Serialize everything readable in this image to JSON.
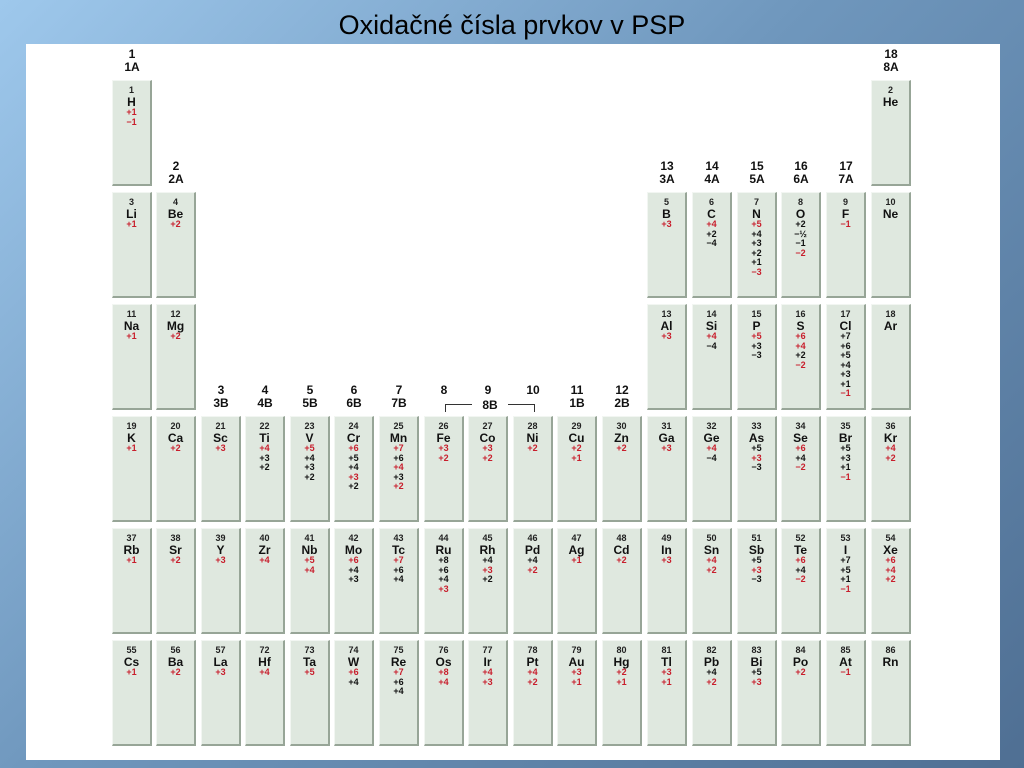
{
  "title": "Oxidačné čísla prvkov v PSP",
  "groups": {
    "g1": [
      "1",
      "1A"
    ],
    "g2": [
      "2",
      "2A"
    ],
    "g3": [
      "3",
      "3B"
    ],
    "g4": [
      "4",
      "4B"
    ],
    "g5": [
      "5",
      "5B"
    ],
    "g6": [
      "6",
      "6B"
    ],
    "g7": [
      "7",
      "7B"
    ],
    "g8": [
      "8",
      ""
    ],
    "g9": [
      "9",
      ""
    ],
    "g10": [
      "10",
      ""
    ],
    "g11": [
      "11",
      "1B"
    ],
    "g12": [
      "12",
      "2B"
    ],
    "g13": [
      "13",
      "3A"
    ],
    "g14": [
      "14",
      "4A"
    ],
    "g15": [
      "15",
      "5A"
    ],
    "g16": [
      "16",
      "6A"
    ],
    "g17": [
      "17",
      "7A"
    ],
    "g18": [
      "18",
      "8A"
    ],
    "g8b": "8B"
  },
  "elements": [
    {
      "n": "1",
      "s": "H",
      "ox": [
        [
          "+1",
          "red"
        ],
        [
          "−1",
          "red"
        ]
      ]
    },
    {
      "n": "2",
      "s": "He",
      "ox": []
    },
    {
      "n": "3",
      "s": "Li",
      "ox": [
        [
          "+1",
          "red"
        ]
      ]
    },
    {
      "n": "4",
      "s": "Be",
      "ox": [
        [
          "+2",
          "red"
        ]
      ]
    },
    {
      "n": "5",
      "s": "B",
      "ox": [
        [
          "+3",
          "red"
        ]
      ]
    },
    {
      "n": "6",
      "s": "C",
      "ox": [
        [
          "+4",
          "red"
        ],
        [
          "+2",
          "black"
        ],
        [
          "−4",
          "black"
        ]
      ]
    },
    {
      "n": "7",
      "s": "N",
      "ox": [
        [
          "+5",
          "red"
        ],
        [
          "+4",
          "black"
        ],
        [
          "+3",
          "black"
        ],
        [
          "+2",
          "black"
        ],
        [
          "+1",
          "black"
        ],
        [
          "−3",
          "red"
        ]
      ]
    },
    {
      "n": "8",
      "s": "O",
      "ox": [
        [
          "+2",
          "black"
        ],
        [
          "−½",
          "black"
        ],
        [
          "−1",
          "black"
        ],
        [
          "−2",
          "red"
        ]
      ]
    },
    {
      "n": "9",
      "s": "F",
      "ox": [
        [
          "−1",
          "red"
        ]
      ]
    },
    {
      "n": "10",
      "s": "Ne",
      "ox": []
    },
    {
      "n": "11",
      "s": "Na",
      "ox": [
        [
          "+1",
          "red"
        ]
      ]
    },
    {
      "n": "12",
      "s": "Mg",
      "ox": [
        [
          "+2",
          "red"
        ]
      ]
    },
    {
      "n": "13",
      "s": "Al",
      "ox": [
        [
          "+3",
          "red"
        ]
      ]
    },
    {
      "n": "14",
      "s": "Si",
      "ox": [
        [
          "+4",
          "red"
        ],
        [
          "−4",
          "black"
        ]
      ]
    },
    {
      "n": "15",
      "s": "P",
      "ox": [
        [
          "+5",
          "red"
        ],
        [
          "+3",
          "black"
        ],
        [
          "−3",
          "black"
        ]
      ]
    },
    {
      "n": "16",
      "s": "S",
      "ox": [
        [
          "+6",
          "red"
        ],
        [
          "+4",
          "red"
        ],
        [
          "+2",
          "black"
        ],
        [
          "−2",
          "red"
        ]
      ]
    },
    {
      "n": "17",
      "s": "Cl",
      "ox": [
        [
          "+7",
          "black"
        ],
        [
          "+6",
          "black"
        ],
        [
          "+5",
          "black"
        ],
        [
          "+4",
          "black"
        ],
        [
          "+3",
          "black"
        ],
        [
          "+1",
          "black"
        ],
        [
          "−1",
          "red"
        ]
      ]
    },
    {
      "n": "18",
      "s": "Ar",
      "ox": []
    },
    {
      "n": "19",
      "s": "K",
      "ox": [
        [
          "+1",
          "red"
        ]
      ]
    },
    {
      "n": "20",
      "s": "Ca",
      "ox": [
        [
          "+2",
          "red"
        ]
      ]
    },
    {
      "n": "21",
      "s": "Sc",
      "ox": [
        [
          "+3",
          "red"
        ]
      ]
    },
    {
      "n": "22",
      "s": "Ti",
      "ox": [
        [
          "+4",
          "red"
        ],
        [
          "+3",
          "black"
        ],
        [
          "+2",
          "black"
        ]
      ]
    },
    {
      "n": "23",
      "s": "V",
      "ox": [
        [
          "+5",
          "red"
        ],
        [
          "+4",
          "black"
        ],
        [
          "+3",
          "black"
        ],
        [
          "+2",
          "black"
        ]
      ]
    },
    {
      "n": "24",
      "s": "Cr",
      "ox": [
        [
          "+6",
          "red"
        ],
        [
          "+5",
          "black"
        ],
        [
          "+4",
          "black"
        ],
        [
          "+3",
          "red"
        ],
        [
          "+2",
          "black"
        ]
      ]
    },
    {
      "n": "25",
      "s": "Mn",
      "ox": [
        [
          "+7",
          "red"
        ],
        [
          "+6",
          "black"
        ],
        [
          "+4",
          "red"
        ],
        [
          "+3",
          "black"
        ],
        [
          "+2",
          "red"
        ]
      ]
    },
    {
      "n": "26",
      "s": "Fe",
      "ox": [
        [
          "+3",
          "red"
        ],
        [
          "+2",
          "red"
        ]
      ]
    },
    {
      "n": "27",
      "s": "Co",
      "ox": [
        [
          "+3",
          "red"
        ],
        [
          "+2",
          "red"
        ]
      ]
    },
    {
      "n": "28",
      "s": "Ni",
      "ox": [
        [
          "+2",
          "red"
        ]
      ]
    },
    {
      "n": "29",
      "s": "Cu",
      "ox": [
        [
          "+2",
          "red"
        ],
        [
          "+1",
          "red"
        ]
      ]
    },
    {
      "n": "30",
      "s": "Zn",
      "ox": [
        [
          "+2",
          "red"
        ]
      ]
    },
    {
      "n": "31",
      "s": "Ga",
      "ox": [
        [
          "+3",
          "red"
        ]
      ]
    },
    {
      "n": "32",
      "s": "Ge",
      "ox": [
        [
          "+4",
          "red"
        ],
        [
          "−4",
          "black"
        ]
      ]
    },
    {
      "n": "33",
      "s": "As",
      "ox": [
        [
          "+5",
          "black"
        ],
        [
          "+3",
          "red"
        ],
        [
          "−3",
          "black"
        ]
      ]
    },
    {
      "n": "34",
      "s": "Se",
      "ox": [
        [
          "+6",
          "red"
        ],
        [
          "+4",
          "black"
        ],
        [
          "−2",
          "red"
        ]
      ]
    },
    {
      "n": "35",
      "s": "Br",
      "ox": [
        [
          "+5",
          "black"
        ],
        [
          "+3",
          "black"
        ],
        [
          "+1",
          "black"
        ],
        [
          "−1",
          "red"
        ]
      ]
    },
    {
      "n": "36",
      "s": "Kr",
      "ox": [
        [
          "+4",
          "red"
        ],
        [
          "+2",
          "red"
        ]
      ]
    },
    {
      "n": "37",
      "s": "Rb",
      "ox": [
        [
          "+1",
          "red"
        ]
      ]
    },
    {
      "n": "38",
      "s": "Sr",
      "ox": [
        [
          "+2",
          "red"
        ]
      ]
    },
    {
      "n": "39",
      "s": "Y",
      "ox": [
        [
          "+3",
          "red"
        ]
      ]
    },
    {
      "n": "40",
      "s": "Zr",
      "ox": [
        [
          "+4",
          "red"
        ]
      ]
    },
    {
      "n": "41",
      "s": "Nb",
      "ox": [
        [
          "+5",
          "red"
        ],
        [
          "+4",
          "red"
        ]
      ]
    },
    {
      "n": "42",
      "s": "Mo",
      "ox": [
        [
          "+6",
          "red"
        ],
        [
          "+4",
          "black"
        ],
        [
          "+3",
          "black"
        ]
      ]
    },
    {
      "n": "43",
      "s": "Tc",
      "ox": [
        [
          "+7",
          "red"
        ],
        [
          "+6",
          "black"
        ],
        [
          "+4",
          "black"
        ]
      ]
    },
    {
      "n": "44",
      "s": "Ru",
      "ox": [
        [
          "+8",
          "black"
        ],
        [
          "+6",
          "black"
        ],
        [
          "+4",
          "black"
        ],
        [
          "+3",
          "red"
        ]
      ]
    },
    {
      "n": "45",
      "s": "Rh",
      "ox": [
        [
          "+4",
          "black"
        ],
        [
          "+3",
          "red"
        ],
        [
          "+2",
          "black"
        ]
      ]
    },
    {
      "n": "46",
      "s": "Pd",
      "ox": [
        [
          "+4",
          "black"
        ],
        [
          "+2",
          "red"
        ]
      ]
    },
    {
      "n": "47",
      "s": "Ag",
      "ox": [
        [
          "+1",
          "red"
        ]
      ]
    },
    {
      "n": "48",
      "s": "Cd",
      "ox": [
        [
          "+2",
          "red"
        ]
      ]
    },
    {
      "n": "49",
      "s": "In",
      "ox": [
        [
          "+3",
          "red"
        ]
      ]
    },
    {
      "n": "50",
      "s": "Sn",
      "ox": [
        [
          "+4",
          "red"
        ],
        [
          "+2",
          "red"
        ]
      ]
    },
    {
      "n": "51",
      "s": "Sb",
      "ox": [
        [
          "+5",
          "black"
        ],
        [
          "+3",
          "red"
        ],
        [
          "−3",
          "black"
        ]
      ]
    },
    {
      "n": "52",
      "s": "Te",
      "ox": [
        [
          "+6",
          "red"
        ],
        [
          "+4",
          "black"
        ],
        [
          "−2",
          "red"
        ]
      ]
    },
    {
      "n": "53",
      "s": "I",
      "ox": [
        [
          "+7",
          "black"
        ],
        [
          "+5",
          "black"
        ],
        [
          "+1",
          "black"
        ],
        [
          "−1",
          "red"
        ]
      ]
    },
    {
      "n": "54",
      "s": "Xe",
      "ox": [
        [
          "+6",
          "red"
        ],
        [
          "+4",
          "red"
        ],
        [
          "+2",
          "red"
        ]
      ]
    },
    {
      "n": "55",
      "s": "Cs",
      "ox": [
        [
          "+1",
          "red"
        ]
      ]
    },
    {
      "n": "56",
      "s": "Ba",
      "ox": [
        [
          "+2",
          "red"
        ]
      ]
    },
    {
      "n": "57",
      "s": "La",
      "ox": [
        [
          "+3",
          "red"
        ]
      ]
    },
    {
      "n": "72",
      "s": "Hf",
      "ox": [
        [
          "+4",
          "red"
        ]
      ]
    },
    {
      "n": "73",
      "s": "Ta",
      "ox": [
        [
          "+5",
          "red"
        ]
      ]
    },
    {
      "n": "74",
      "s": "W",
      "ox": [
        [
          "+6",
          "red"
        ],
        [
          "+4",
          "black"
        ]
      ]
    },
    {
      "n": "75",
      "s": "Re",
      "ox": [
        [
          "+7",
          "red"
        ],
        [
          "+6",
          "black"
        ],
        [
          "+4",
          "black"
        ]
      ]
    },
    {
      "n": "76",
      "s": "Os",
      "ox": [
        [
          "+8",
          "red"
        ],
        [
          "+4",
          "red"
        ]
      ]
    },
    {
      "n": "77",
      "s": "Ir",
      "ox": [
        [
          "+4",
          "red"
        ],
        [
          "+3",
          "red"
        ]
      ]
    },
    {
      "n": "78",
      "s": "Pt",
      "ox": [
        [
          "+4",
          "red"
        ],
        [
          "+2",
          "red"
        ]
      ]
    },
    {
      "n": "79",
      "s": "Au",
      "ox": [
        [
          "+3",
          "red"
        ],
        [
          "+1",
          "red"
        ]
      ]
    },
    {
      "n": "80",
      "s": "Hg",
      "ox": [
        [
          "+2",
          "red"
        ],
        [
          "+1",
          "red"
        ]
      ]
    },
    {
      "n": "81",
      "s": "Tl",
      "ox": [
        [
          "+3",
          "red"
        ],
        [
          "+1",
          "red"
        ]
      ]
    },
    {
      "n": "82",
      "s": "Pb",
      "ox": [
        [
          "+4",
          "black"
        ],
        [
          "+2",
          "red"
        ]
      ]
    },
    {
      "n": "83",
      "s": "Bi",
      "ox": [
        [
          "+5",
          "black"
        ],
        [
          "+3",
          "red"
        ]
      ]
    },
    {
      "n": "84",
      "s": "Po",
      "ox": [
        [
          "+2",
          "red"
        ]
      ]
    },
    {
      "n": "85",
      "s": "At",
      "ox": [
        [
          "−1",
          "red"
        ]
      ]
    },
    {
      "n": "86",
      "s": "Rn",
      "ox": []
    }
  ]
}
